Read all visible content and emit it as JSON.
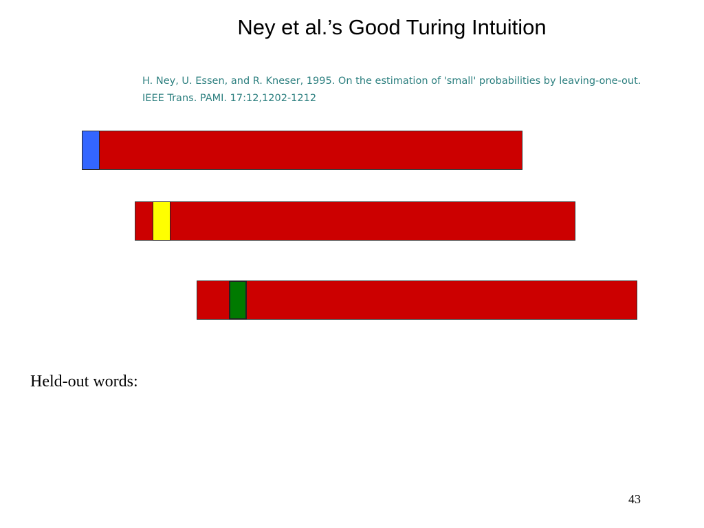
{
  "slide": {
    "title": "Ney et al.’s Good Turing Intuition",
    "citation": {
      "line1": "H. Ney, U. Essen, and R. Kneser, 1995. On the estimation of 'small' probabilities by leaving-one-out.",
      "line2": "IEEE Trans. PAMI. 17:12,1202-1212"
    },
    "heldout_label": "Held-out words:",
    "page_number": "43"
  },
  "colors": {
    "bar_fill": "#cc0000",
    "held_out_markers": [
      "#3366ff",
      "#ffff00",
      "#007a00"
    ],
    "citation_text": "#2c7f7f"
  }
}
